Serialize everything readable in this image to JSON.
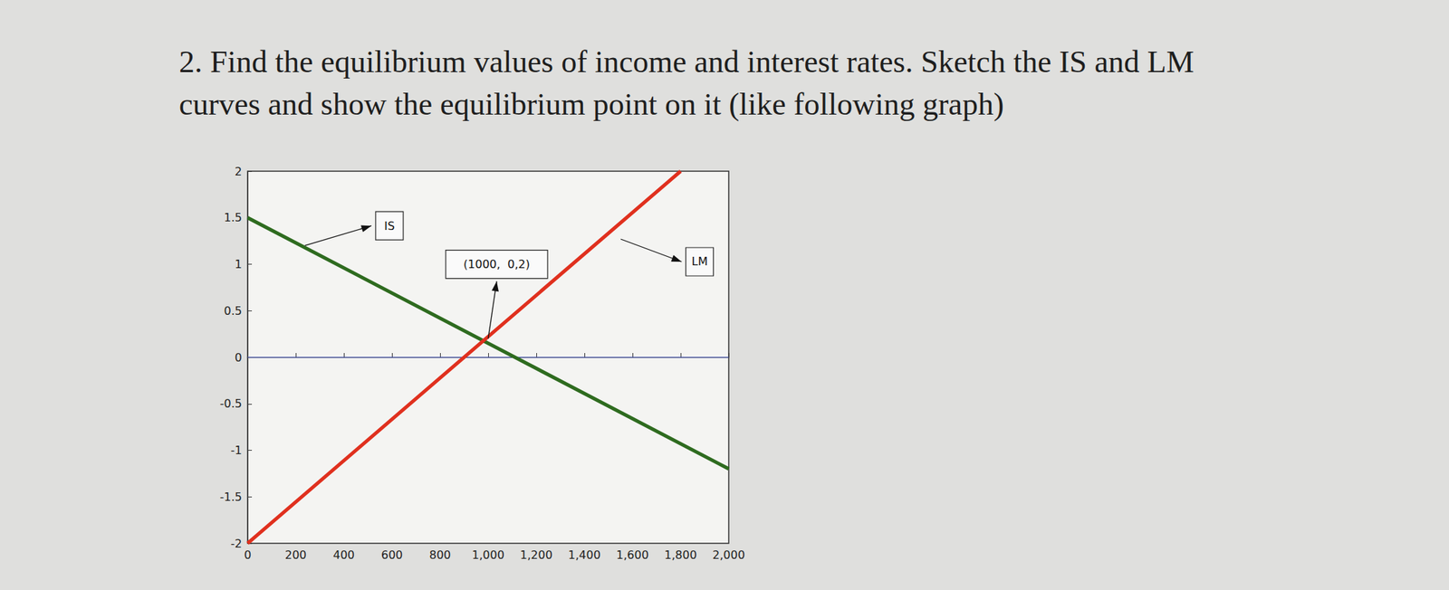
{
  "chart_data": {
    "type": "line",
    "title": "2. Find the equilibrium values of income and interest rates. Sketch the IS and LM\ncurves and show the equilibrium point on it (like following graph)",
    "series": [
      {
        "name": "IS",
        "color": "#2e6b1f",
        "x": [
          0,
          2000
        ],
        "values": [
          1.5,
          -1.2
        ]
      },
      {
        "name": "LM",
        "color": "#e0301e",
        "x": [
          0,
          1800
        ],
        "values": [
          -2,
          2
        ]
      },
      {
        "color": "#4a5cc8",
        "x": [
          0,
          2000
        ],
        "values": [
          0,
          0
        ]
      }
    ],
    "annotations": [
      {
        "text": "IS",
        "x": 238,
        "y": 1.2
      },
      {
        "text": "LM",
        "x": 1551,
        "y": 1.27
      },
      {
        "text": "(1000,  0,2)",
        "x": 1000,
        "y": 0.2
      }
    ],
    "xlim": [
      0,
      2000
    ],
    "xticks": [
      0,
      200,
      400,
      600,
      800,
      1000,
      1200,
      1400,
      1600,
      1800,
      2000
    ],
    "ylim": [
      -2,
      2
    ],
    "yticks": [
      -2,
      -1.5,
      -1,
      -0.5,
      0,
      0.5,
      1,
      1.5,
      2
    ],
    "grid": false
  }
}
